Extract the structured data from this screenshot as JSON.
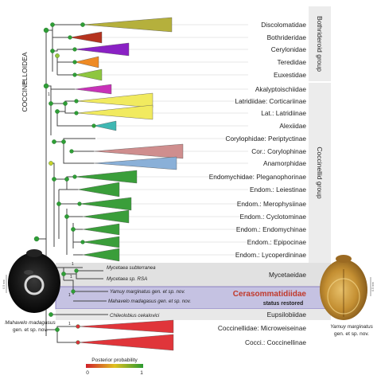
{
  "superfamily_label": "COCCINELLOIDEA",
  "group_labels": {
    "bothrideroid": "Bothrideroid group",
    "coccinellid": "Coccinellid group"
  },
  "families": [
    "Discolomatidae",
    "Bothrideridae",
    "Cerylonidae",
    "Teredidae",
    "Euxestidae",
    "Akalyptoischiidae",
    "Latridiidae: Corticariinae",
    "Lat.: Latridiinae",
    "Alexiidae",
    "Corylophidae: Periptyctinae",
    "Cor.: Corylophinae",
    "Anamorphidae",
    "Endomychidae: Pleganophorinae",
    "Endom.: Leiestinae",
    "Endom.: Merophysiinae",
    "Endom.: Cyclotominae",
    "Endom.: Endomychinae",
    "Endom.: Epipocinae",
    "Endom.: Lycoperdininae"
  ],
  "mycetaeid_taxa": {
    "subterranea": "Mycetaea subterranea",
    "rsa": "Mycetaea sp. RSA",
    "yamuy": "Yamuy marginatus gen. et sp. nov.",
    "mahavelo": "Mahavelo madagasus gen. et sp. nov.",
    "chileolobius": "Chileolobius cekalovici"
  },
  "box_labels": {
    "mycetaeidae": "Mycetaeidae",
    "cerasommatidiidae": "Cerasommatidiidae",
    "status": "status restored",
    "eupsilobiidae": "Eupsilobiidae"
  },
  "coccinellidae": [
    "Coccinellidae: Microweiseinae",
    "Cocci.: Coccinellinae"
  ],
  "node_support_labels": [
    "1",
    "1",
    "1",
    "1",
    "1"
  ],
  "specimens": {
    "left": {
      "name_line1": "Mahavelo madagasus",
      "name_line2": "gen. et sp. nov.",
      "scale": "0.5 mm"
    },
    "right": {
      "name_line1": "Yamuy marginatus",
      "name_line2": "gen. et sp. nov.",
      "scale": "0.5 mm"
    }
  },
  "legend": {
    "title": "Posterior probability",
    "min": "0",
    "max": "1"
  },
  "colors": {
    "title_red": "#c0392b",
    "cerasommatidiidae_box": "#c5c2e2",
    "mycetaeidae_box": "#e1e1e1",
    "group_panel": "#ededed",
    "node_green": "#2e9e36"
  },
  "clade_colors": {
    "discolomatidae": "#b5b03c",
    "bothrideridae": "#b5331f",
    "cerylonidae": "#8a21c4",
    "teredidae": "#ee8a24",
    "euxestidae": "#8ec63f",
    "akalyptoischiidae": "#c832b8",
    "corticariinae": "#f1ea5f",
    "latridiinae": "#f1ea5f",
    "alexiidae": "#3fb7b2",
    "corylophinae": "#cf8e8e",
    "anamorphidae": "#8ab0d8",
    "endomychidae": "#3a9e3a",
    "microweiseinae": "#e0353a",
    "coccinellinae": "#e0353a"
  }
}
